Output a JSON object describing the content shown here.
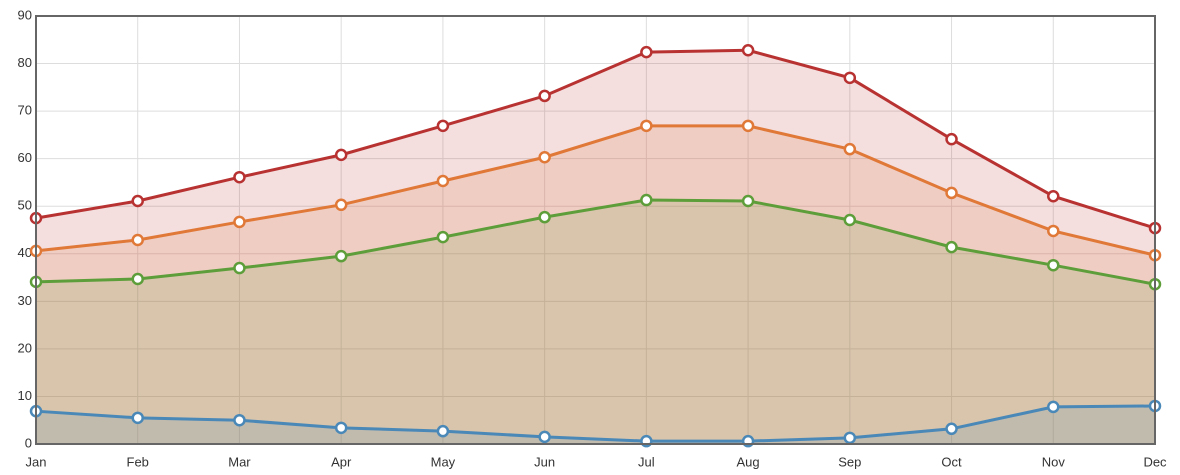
{
  "chart_data": {
    "type": "line",
    "categories": [
      "Jan",
      "Feb",
      "Mar",
      "Apr",
      "May",
      "Jun",
      "Jul",
      "Aug",
      "Sep",
      "Oct",
      "Nov",
      "Dec"
    ],
    "series": [
      {
        "color": "#b83232",
        "values": [
          47.5,
          51.1,
          56.1,
          60.8,
          66.9,
          73.2,
          82.4,
          82.8,
          77,
          64.1,
          52.1,
          45.4
        ]
      },
      {
        "color": "#e07838",
        "values": [
          40.6,
          42.9,
          46.7,
          50.3,
          55.3,
          60.3,
          66.9,
          66.9,
          62,
          52.8,
          44.8,
          39.7
        ]
      },
      {
        "color": "#5e9e3a",
        "values": [
          34.1,
          34.7,
          37,
          39.5,
          43.5,
          47.7,
          51.3,
          51.1,
          47.1,
          41.4,
          37.6,
          33.6
        ]
      },
      {
        "color": "#4a88b8",
        "values": [
          6.9,
          5.5,
          5,
          3.4,
          2.7,
          1.5,
          0.6,
          0.6,
          1.3,
          3.2,
          7.8,
          8
        ]
      }
    ],
    "ylim": [
      0,
      90
    ],
    "yticks": [
      0,
      10,
      20,
      30,
      40,
      50,
      60,
      70,
      80,
      90
    ],
    "grid": true,
    "area": true
  }
}
